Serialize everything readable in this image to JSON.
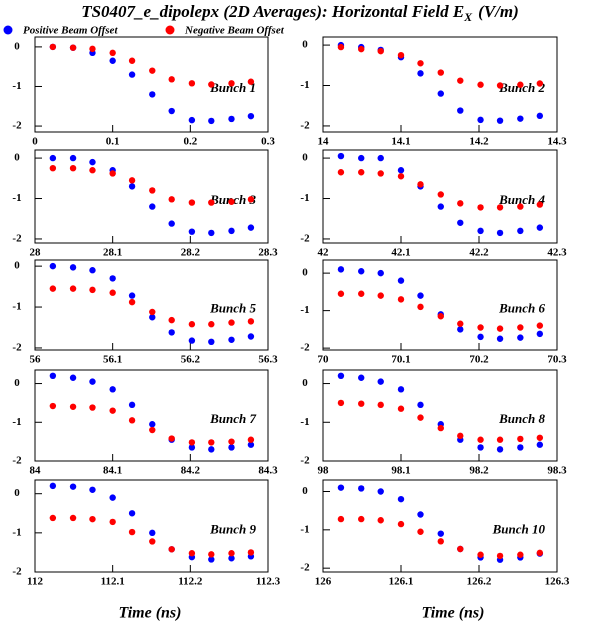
{
  "title": "TS0407_e_dipolepx (2D Averages): Horizontal Field E",
  "title_sub": "X",
  "title_unit": "(V/m)",
  "legend": [
    {
      "name": "Positive Beam Offset",
      "color": "#0000ff"
    },
    {
      "name": "Negative Beam Offset",
      "color": "#ff0000"
    }
  ],
  "xlabels": [
    "Time (ns)",
    "Time (ns)"
  ],
  "chart_data": [
    {
      "type": "scatter",
      "annotation": "Bunch 1",
      "x": [
        0.023,
        0.049,
        0.074,
        0.1,
        0.125,
        0.151,
        0.176,
        0.202,
        0.227,
        0.253,
        0.278
      ],
      "xlim": [
        0,
        0.3
      ],
      "xticks": [
        0,
        0.1,
        0.2,
        0.3
      ],
      "ylim": [
        -2.15,
        0.25
      ],
      "yticks": [
        0,
        -1,
        -2
      ],
      "series": [
        {
          "color": "#0000ff",
          "values": [
            0,
            -0.02,
            -0.15,
            -0.35,
            -0.7,
            -1.2,
            -1.62,
            -1.85,
            -1.87,
            -1.82,
            -1.75
          ]
        },
        {
          "color": "#ff0000",
          "values": [
            0,
            -0.02,
            -0.05,
            -0.15,
            -0.35,
            -0.6,
            -0.82,
            -0.92,
            -0.95,
            -0.92,
            -0.88
          ]
        }
      ]
    },
    {
      "type": "scatter",
      "annotation": "Bunch 2",
      "x": [
        14.023,
        14.049,
        14.074,
        14.1,
        14.125,
        14.151,
        14.176,
        14.202,
        14.227,
        14.253,
        14.278
      ],
      "xlim": [
        14,
        14.3
      ],
      "xticks": [
        14,
        14.1,
        14.2,
        14.3
      ],
      "ylim": [
        -2.15,
        0.2
      ],
      "yticks": [
        0,
        -1,
        -2
      ],
      "series": [
        {
          "color": "#0000ff",
          "values": [
            0,
            -0.05,
            -0.12,
            -0.3,
            -0.7,
            -1.2,
            -1.62,
            -1.85,
            -1.87,
            -1.82,
            -1.75
          ]
        },
        {
          "color": "#ff0000",
          "values": [
            -0.05,
            -0.1,
            -0.15,
            -0.25,
            -0.45,
            -0.68,
            -0.88,
            -0.98,
            -1.0,
            -0.98,
            -0.95
          ]
        }
      ]
    },
    {
      "type": "scatter",
      "annotation": "Bunch 3",
      "x": [
        28.023,
        28.049,
        28.074,
        28.1,
        28.125,
        28.151,
        28.176,
        28.202,
        28.227,
        28.253,
        28.278
      ],
      "xlim": [
        28,
        28.3
      ],
      "xticks": [
        28,
        28.1,
        28.2,
        28.3
      ],
      "ylim": [
        -2.1,
        0.2
      ],
      "yticks": [
        0,
        -1,
        -2
      ],
      "series": [
        {
          "color": "#0000ff",
          "values": [
            0,
            0,
            -0.1,
            -0.3,
            -0.7,
            -1.2,
            -1.62,
            -1.82,
            -1.85,
            -1.8,
            -1.72
          ]
        },
        {
          "color": "#ff0000",
          "values": [
            -0.25,
            -0.25,
            -0.3,
            -0.38,
            -0.55,
            -0.8,
            -1.02,
            -1.1,
            -1.1,
            -1.08,
            -1.02
          ]
        }
      ]
    },
    {
      "type": "scatter",
      "annotation": "Bunch 4",
      "x": [
        42.023,
        42.049,
        42.074,
        42.1,
        42.125,
        42.151,
        42.176,
        42.202,
        42.227,
        42.253,
        42.278
      ],
      "xlim": [
        42,
        42.3
      ],
      "xticks": [
        42,
        42.1,
        42.2,
        42.3
      ],
      "ylim": [
        -2.1,
        0.2
      ],
      "yticks": [
        0,
        -1,
        -2
      ],
      "series": [
        {
          "color": "#0000ff",
          "values": [
            0.05,
            0,
            0,
            -0.3,
            -0.7,
            -1.2,
            -1.6,
            -1.8,
            -1.85,
            -1.8,
            -1.72
          ]
        },
        {
          "color": "#ff0000",
          "values": [
            -0.35,
            -0.35,
            -0.38,
            -0.45,
            -0.65,
            -0.9,
            -1.12,
            -1.22,
            -1.22,
            -1.2,
            -1.15
          ]
        }
      ]
    },
    {
      "type": "scatter",
      "annotation": "Bunch 5",
      "x": [
        56.023,
        56.049,
        56.074,
        56.1,
        56.125,
        56.151,
        56.176,
        56.202,
        56.227,
        56.253,
        56.278
      ],
      "xlim": [
        56,
        56.3
      ],
      "xticks": [
        56,
        56.1,
        56.2,
        56.3
      ],
      "ylim": [
        -2.05,
        0.15
      ],
      "yticks": [
        0,
        -1,
        -2
      ],
      "series": [
        {
          "color": "#0000ff",
          "values": [
            0,
            -0.03,
            -0.1,
            -0.3,
            -0.72,
            -1.25,
            -1.62,
            -1.82,
            -1.85,
            -1.8,
            -1.72
          ]
        },
        {
          "color": "#ff0000",
          "values": [
            -0.55,
            -0.55,
            -0.58,
            -0.65,
            -0.88,
            -1.12,
            -1.32,
            -1.42,
            -1.42,
            -1.38,
            -1.35
          ]
        }
      ]
    },
    {
      "type": "scatter",
      "annotation": "Bunch 6",
      "x": [
        70.023,
        70.049,
        70.074,
        70.1,
        70.125,
        70.151,
        70.176,
        70.202,
        70.227,
        70.253,
        70.278
      ],
      "xlim": [
        70,
        70.3
      ],
      "xticks": [
        70,
        70.1,
        70.2,
        70.3
      ],
      "ylim": [
        -2.05,
        0.35
      ],
      "yticks": [
        0,
        -1,
        -2
      ],
      "series": [
        {
          "color": "#0000ff",
          "values": [
            0.1,
            0.05,
            0,
            -0.2,
            -0.6,
            -1.1,
            -1.5,
            -1.7,
            -1.75,
            -1.72,
            -1.62
          ]
        },
        {
          "color": "#ff0000",
          "values": [
            -0.55,
            -0.55,
            -0.6,
            -0.7,
            -0.9,
            -1.15,
            -1.35,
            -1.45,
            -1.48,
            -1.45,
            -1.4
          ]
        }
      ]
    },
    {
      "type": "scatter",
      "annotation": "Bunch 7",
      "x": [
        84.023,
        84.049,
        84.074,
        84.1,
        84.125,
        84.151,
        84.176,
        84.202,
        84.227,
        84.253,
        84.278
      ],
      "xlim": [
        84,
        84.3
      ],
      "xticks": [
        84,
        84.1,
        84.2,
        84.3
      ],
      "ylim": [
        -2.0,
        0.35
      ],
      "yticks": [
        0,
        -1,
        -2
      ],
      "series": [
        {
          "color": "#0000ff",
          "values": [
            0.2,
            0.15,
            0.05,
            -0.15,
            -0.55,
            -1.05,
            -1.45,
            -1.65,
            -1.7,
            -1.65,
            -1.58
          ]
        },
        {
          "color": "#ff0000",
          "values": [
            -0.58,
            -0.6,
            -0.62,
            -0.7,
            -0.95,
            -1.2,
            -1.42,
            -1.52,
            -1.52,
            -1.5,
            -1.45
          ]
        }
      ]
    },
    {
      "type": "scatter",
      "annotation": "Bunch 8",
      "x": [
        98.023,
        98.049,
        98.074,
        98.1,
        98.125,
        98.151,
        98.176,
        98.202,
        98.227,
        98.253,
        98.278
      ],
      "xlim": [
        98,
        98.3
      ],
      "xticks": [
        98,
        98.1,
        98.2,
        98.3
      ],
      "ylim": [
        -2.0,
        0.35
      ],
      "yticks": [
        0,
        -1,
        -2
      ],
      "series": [
        {
          "color": "#0000ff",
          "values": [
            0.2,
            0.15,
            0.05,
            -0.15,
            -0.55,
            -1.05,
            -1.45,
            -1.65,
            -1.7,
            -1.65,
            -1.58
          ]
        },
        {
          "color": "#ff0000",
          "values": [
            -0.5,
            -0.52,
            -0.55,
            -0.65,
            -0.88,
            -1.15,
            -1.35,
            -1.45,
            -1.45,
            -1.43,
            -1.4
          ]
        }
      ]
    },
    {
      "type": "scatter",
      "annotation": "Bunch 9",
      "x": [
        112.023,
        112.049,
        112.074,
        112.1,
        112.125,
        112.151,
        112.176,
        112.202,
        112.227,
        112.253,
        112.278
      ],
      "xlim": [
        112,
        112.3
      ],
      "xticks": [
        112,
        112.1,
        112.2,
        112.3
      ],
      "ylim": [
        -2.0,
        0.35
      ],
      "yticks": [
        0,
        -1,
        -2
      ],
      "series": [
        {
          "color": "#0000ff",
          "values": [
            0.2,
            0.18,
            0.1,
            -0.1,
            -0.5,
            -1.0,
            -1.42,
            -1.62,
            -1.68,
            -1.65,
            -1.6
          ]
        },
        {
          "color": "#ff0000",
          "values": [
            -0.62,
            -0.62,
            -0.65,
            -0.72,
            -0.98,
            -1.22,
            -1.42,
            -1.52,
            -1.55,
            -1.52,
            -1.5
          ]
        }
      ]
    },
    {
      "type": "scatter",
      "annotation": "Bunch 10",
      "x": [
        126.023,
        126.049,
        126.074,
        126.1,
        126.125,
        126.151,
        126.176,
        126.202,
        126.227,
        126.253,
        126.278
      ],
      "xlim": [
        126,
        126.3
      ],
      "xticks": [
        126,
        126.1,
        126.2,
        126.3
      ],
      "ylim": [
        -2.1,
        0.3
      ],
      "yticks": [
        0,
        -1,
        -2
      ],
      "series": [
        {
          "color": "#0000ff",
          "values": [
            0.1,
            0.08,
            0,
            -0.2,
            -0.6,
            -1.1,
            -1.5,
            -1.72,
            -1.78,
            -1.72,
            -1.62
          ]
        },
        {
          "color": "#ff0000",
          "values": [
            -0.72,
            -0.72,
            -0.75,
            -0.85,
            -1.05,
            -1.3,
            -1.5,
            -1.65,
            -1.68,
            -1.65,
            -1.6
          ]
        }
      ]
    }
  ]
}
